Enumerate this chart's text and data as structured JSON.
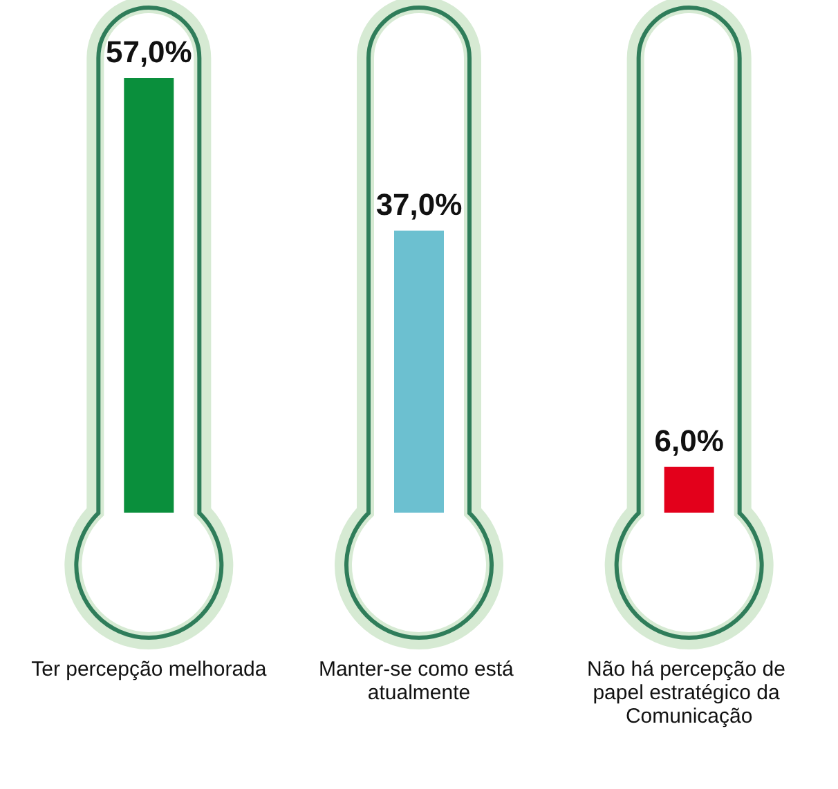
{
  "chart_data": {
    "type": "bar",
    "categories": [
      "Ter percepção melhorada",
      "Manter-se como está atualmente",
      "Não há percepção de papel estratégico da Comunicação"
    ],
    "values": [
      57,
      37,
      6
    ],
    "colors": [
      "#0a8f3c",
      "#6cc0d0",
      "#e3001b"
    ],
    "value_labels": [
      "57,0%",
      "37,0%",
      "6,0%"
    ]
  }
}
